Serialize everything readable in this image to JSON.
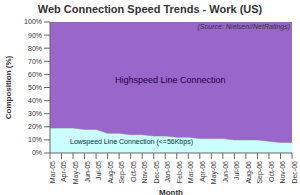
{
  "chart_data": {
    "type": "area",
    "title": "Web Connection Speed Trends - Work (US)",
    "subtitle": "(Source: Nielsen//NetRatings)",
    "x_label": "Month",
    "y_label": "Composition (%)",
    "stacked": true,
    "grid": false,
    "categories": [
      "Mar-05",
      "Apr-05",
      "May-05",
      "Jun-05",
      "Jul-05",
      "Aug-05",
      "Sep-05",
      "Oct-05",
      "Nov-05",
      "Dec-05",
      "Jan-06",
      "Feb-06",
      "Mar-06",
      "Apr-06",
      "May-06",
      "Jun-06",
      "Jul-06",
      "Aug-06",
      "Sep-06",
      "Oct-06",
      "Nov-06",
      "Dec-06"
    ],
    "series": [
      {
        "name": "Lowspeed Line Connection (<=56Kbps)",
        "color": "#ccffff",
        "values": [
          19,
          19,
          19,
          18,
          18,
          15,
          15,
          14,
          14,
          13,
          13,
          12,
          12,
          11,
          11,
          11,
          10,
          10,
          10,
          9,
          8,
          8
        ]
      },
      {
        "name": "Highspeed Line Connection",
        "color": "#9966cc",
        "values": [
          81,
          81,
          81,
          82,
          82,
          85,
          85,
          86,
          86,
          87,
          87,
          88,
          88,
          89,
          89,
          89,
          90,
          90,
          90,
          91,
          92,
          92
        ]
      }
    ],
    "ylim": [
      0,
      100
    ],
    "yticks": [
      {
        "value": 0,
        "label": "0%"
      },
      {
        "value": 10,
        "label": "10%"
      },
      {
        "value": 20,
        "label": "20%"
      },
      {
        "value": 30,
        "label": "30%"
      },
      {
        "value": 40,
        "label": "40%"
      },
      {
        "value": 50,
        "label": "50%"
      },
      {
        "value": 60,
        "label": "60%"
      },
      {
        "value": 70,
        "label": "70%"
      },
      {
        "value": 80,
        "label": "80%"
      },
      {
        "value": 90,
        "label": "90%"
      },
      {
        "value": 100,
        "label": "100%"
      }
    ]
  }
}
